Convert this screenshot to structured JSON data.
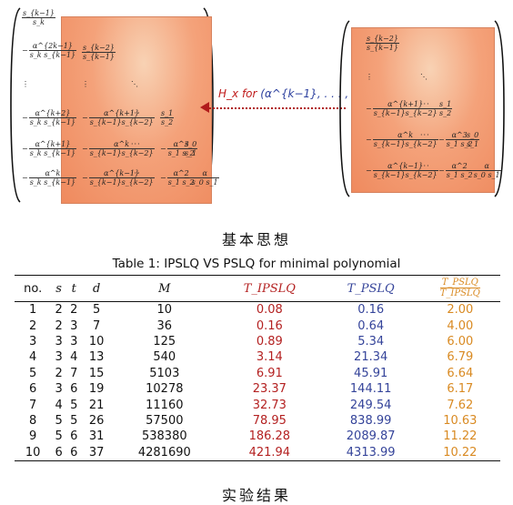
{
  "left_matrix": {
    "col1": [
      {
        "sign": "",
        "num": "s_{k−1}",
        "den": "s_k"
      },
      {
        "sign": "−",
        "num": "α^{2k−1}",
        "den": "s_k s_{k−1}"
      },
      {
        "sign": "",
        "text": "⋮"
      },
      {
        "sign": "−",
        "num": "α^{k+2}",
        "den": "s_k s_{k−1}"
      },
      {
        "sign": "−",
        "num": "α^{k+1}",
        "den": "s_k s_{k−1}"
      },
      {
        "sign": "−",
        "num": "α^k",
        "den": "s_k s_{k−1}"
      }
    ]
  },
  "inner_matrix": {
    "rows": [
      {
        "cells": [
          {
            "sign": "",
            "num": "s_{k−2}",
            "den": "s_{k−1}"
          }
        ]
      },
      {
        "cells": [
          {
            "text": "⋮"
          },
          {
            "text": "⋱"
          }
        ]
      },
      {
        "cells": [
          {
            "sign": "−",
            "num": "α^{k+1}",
            "den": "s_{k−1}s_{k−2}"
          },
          {
            "text": "···"
          },
          {
            "sign": "",
            "num": "s_1",
            "den": "s_2"
          }
        ]
      },
      {
        "cells": [
          {
            "sign": "−",
            "num": "α^k",
            "den": "s_{k−1}s_{k−2}"
          },
          {
            "text": "···"
          },
          {
            "sign": "−",
            "num": "α^3",
            "den": "s_1 s_2"
          },
          {
            "sign": "",
            "num": "s_0",
            "den": "s_1"
          }
        ]
      },
      {
        "cells": [
          {
            "sign": "−",
            "num": "α^{k−1}",
            "den": "s_{k−1}s_{k−2}"
          },
          {
            "text": "···"
          },
          {
            "sign": "−",
            "num": "α^2",
            "den": "s_1 s_2"
          },
          {
            "sign": "−",
            "num": "α",
            "den": "s_0 s_1"
          }
        ]
      }
    ]
  },
  "arrow_label": {
    "prefix": "H_x for ",
    "tuple": "(α^{k−1}, . . . , α, 1)"
  },
  "caption_top": "基本思想",
  "table": {
    "title": "Table 1: IPSLQ VS PSLQ for minimal polynomial",
    "headers": [
      "no.",
      "s",
      "t",
      "d",
      "M",
      "T_IPSLQ",
      "T_PSLQ",
      "T_PSLQ / T_IPSLQ"
    ],
    "ratio_num": "T_PSLQ",
    "ratio_den": "T_IPSLQ",
    "rows": [
      [
        "1",
        "2",
        "2",
        "5",
        "10",
        "0.08",
        "0.16",
        "2.00"
      ],
      [
        "2",
        "2",
        "3",
        "7",
        "36",
        "0.16",
        "0.64",
        "4.00"
      ],
      [
        "3",
        "3",
        "3",
        "10",
        "125",
        "0.89",
        "5.34",
        "6.00"
      ],
      [
        "4",
        "3",
        "4",
        "13",
        "540",
        "3.14",
        "21.34",
        "6.79"
      ],
      [
        "5",
        "2",
        "7",
        "15",
        "5103",
        "6.91",
        "45.91",
        "6.64"
      ],
      [
        "6",
        "3",
        "6",
        "19",
        "10278",
        "23.37",
        "144.11",
        "6.17"
      ],
      [
        "7",
        "4",
        "5",
        "21",
        "11160",
        "32.73",
        "249.54",
        "7.62"
      ],
      [
        "8",
        "5",
        "5",
        "26",
        "57500",
        "78.95",
        "838.99",
        "10.63"
      ],
      [
        "9",
        "5",
        "6",
        "31",
        "538380",
        "186.28",
        "2089.87",
        "11.22"
      ],
      [
        "10",
        "6",
        "6",
        "37",
        "4281690",
        "421.94",
        "4313.99",
        "10.22"
      ]
    ]
  },
  "caption_bottom": "实验结果",
  "colors": {
    "t_ipslq": "#b42121",
    "t_pslq": "#35449a",
    "ratio": "#d98a22",
    "highlight": "#ef8a5e"
  }
}
